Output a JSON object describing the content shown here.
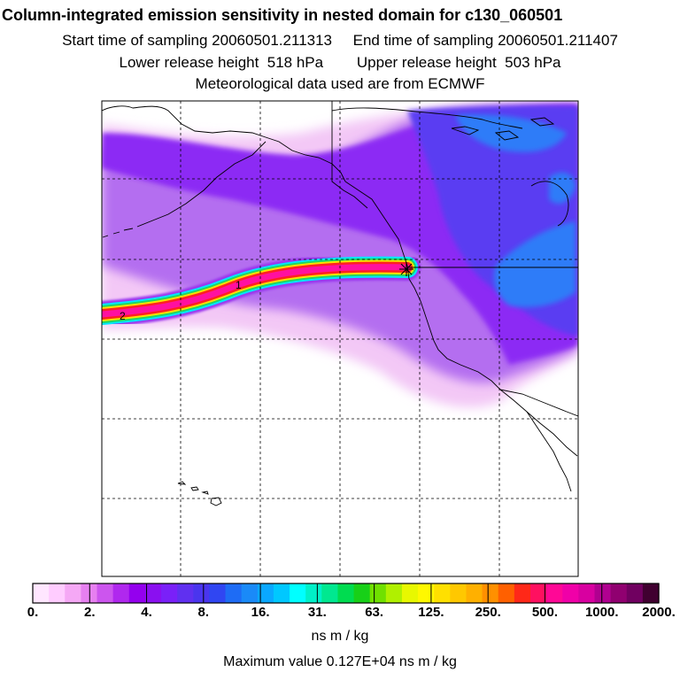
{
  "header": {
    "title": "Column-integrated emission sensitivity in nested domain for c130_060501",
    "sampling": "Start time of sampling 20060501.211313     End time of sampling 20060501.211407",
    "release": "Lower release height  518 hPa        Upper release height  503 hPa",
    "met": "Meteorological data used are from ECMWF"
  },
  "map": {
    "plume_labels": [
      "1",
      "2"
    ],
    "release_marker": "star-marker"
  },
  "colorbar": {
    "tick_labels": [
      "0.",
      "2.",
      "4.",
      "8.",
      "16.",
      "31.",
      "63.",
      "125.",
      "250.",
      "500.",
      "1000.",
      "2000."
    ],
    "unit": "ns m / kg",
    "max_value": "Maximum value  0.127E+04 ns m / kg",
    "colors": [
      "#ffe6ff",
      "#ffccff",
      "#f5a8f5",
      "#e680f0",
      "#cc55ee",
      "#b028ee",
      "#9400ee",
      "#8a10f0",
      "#7a20f8",
      "#6030f0",
      "#4a35ee",
      "#3046f2",
      "#1e6cf5",
      "#1a8af8",
      "#0aa8ff",
      "#00c8ff",
      "#00ffff",
      "#00f0c8",
      "#00e890",
      "#00dc50",
      "#18d018",
      "#70e000",
      "#b0f000",
      "#e8f800",
      "#fff800",
      "#ffe000",
      "#ffc800",
      "#ffb000",
      "#ff9000",
      "#ff6000",
      "#ff2818",
      "#ff1060",
      "#ff0896",
      "#f000a8",
      "#d800a0",
      "#b00090",
      "#900070",
      "#700060",
      "#400030"
    ]
  },
  "colors": {
    "ocean_white": "#ffffff",
    "light_pink": "#f3c8f6",
    "medium_purple": "#b46ef0",
    "deep_purple": "#8c2cf4",
    "blue_violet": "#5a3cf2",
    "blue": "#2f7cf8",
    "plume_magenta": "#ff10a0",
    "plume_red": "#ff2020",
    "plume_yellow": "#ffe000",
    "plume_green": "#20d860",
    "plume_cyan": "#00e8ff"
  }
}
